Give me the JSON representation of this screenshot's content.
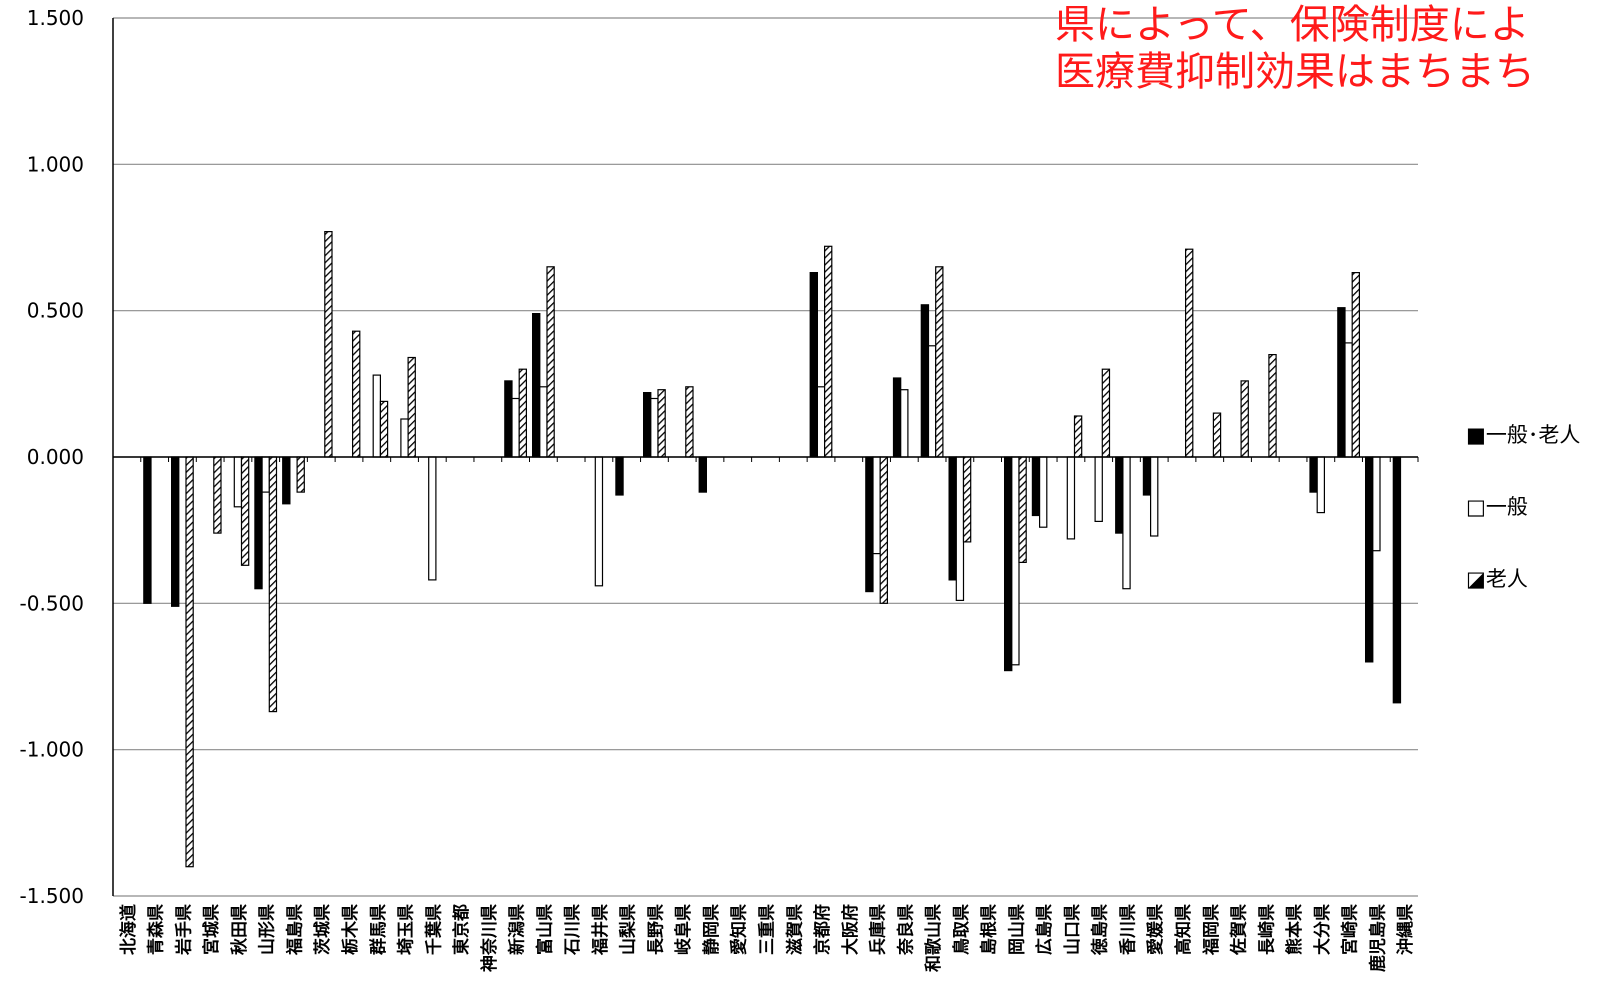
{
  "annotation": "県によって、保険制度によ\n医療費抑制効果はまちまち",
  "legend": [
    {
      "label": "■一般･老人",
      "style": "black"
    },
    {
      "label": "□一般",
      "style": "white"
    },
    {
      "label": "◪老人",
      "style": "hatch"
    }
  ],
  "chart_data": {
    "type": "bar",
    "ylim": [
      -1.5,
      1.5
    ],
    "yticks": [
      "1.500",
      "1.000",
      "0.500",
      "0.000",
      "-0.500",
      "-1.000",
      "-1.500"
    ],
    "grid": true,
    "legend_position": "right",
    "categories": [
      "北海道",
      "青森県",
      "岩手県",
      "宮城県",
      "秋田県",
      "山形県",
      "福島県",
      "茨城県",
      "栃木県",
      "群馬県",
      "埼玉県",
      "千葉県",
      "東京都",
      "神奈川県",
      "新潟県",
      "富山県",
      "石川県",
      "福井県",
      "山梨県",
      "長野県",
      "岐阜県",
      "静岡県",
      "愛知県",
      "三重県",
      "滋賀県",
      "京都府",
      "大阪府",
      "兵庫県",
      "奈良県",
      "和歌山県",
      "鳥取県",
      "島根県",
      "岡山県",
      "広島県",
      "山口県",
      "徳島県",
      "香川県",
      "愛媛県",
      "高知県",
      "福岡県",
      "佐賀県",
      "長崎県",
      "熊本県",
      "大分県",
      "宮崎県",
      "鹿児島県",
      "沖縄県"
    ],
    "series": [
      {
        "name": "一般･老人",
        "style": "black",
        "values": [
          null,
          -0.5,
          -0.51,
          null,
          null,
          -0.45,
          -0.16,
          null,
          null,
          null,
          null,
          null,
          null,
          null,
          0.26,
          0.49,
          null,
          null,
          -0.13,
          0.22,
          null,
          -0.12,
          null,
          null,
          null,
          0.63,
          null,
          -0.46,
          0.27,
          0.52,
          -0.42,
          null,
          -0.73,
          -0.2,
          null,
          null,
          -0.26,
          -0.13,
          null,
          null,
          null,
          null,
          null,
          -0.12,
          0.51,
          -0.7,
          -0.84
        ]
      },
      {
        "name": "一般",
        "style": "white",
        "values": [
          null,
          null,
          null,
          null,
          -0.17,
          -0.12,
          null,
          null,
          null,
          0.28,
          0.13,
          -0.42,
          null,
          null,
          0.2,
          0.24,
          null,
          -0.44,
          null,
          0.2,
          null,
          null,
          null,
          null,
          null,
          0.24,
          null,
          -0.33,
          0.23,
          0.38,
          -0.49,
          null,
          -0.71,
          -0.24,
          -0.28,
          -0.22,
          -0.45,
          -0.27,
          null,
          null,
          null,
          null,
          null,
          -0.19,
          0.39,
          -0.32,
          null
        ]
      },
      {
        "name": "老人",
        "style": "hatch",
        "values": [
          null,
          null,
          -1.4,
          -0.26,
          -0.37,
          -0.87,
          -0.12,
          0.77,
          0.43,
          0.19,
          0.34,
          null,
          null,
          null,
          0.3,
          0.65,
          null,
          null,
          null,
          0.23,
          0.24,
          null,
          null,
          null,
          null,
          0.72,
          null,
          -0.5,
          null,
          0.65,
          -0.29,
          null,
          -0.36,
          null,
          0.14,
          0.3,
          null,
          null,
          0.71,
          0.15,
          0.26,
          0.35,
          null,
          null,
          0.63,
          null,
          null
        ]
      }
    ]
  }
}
